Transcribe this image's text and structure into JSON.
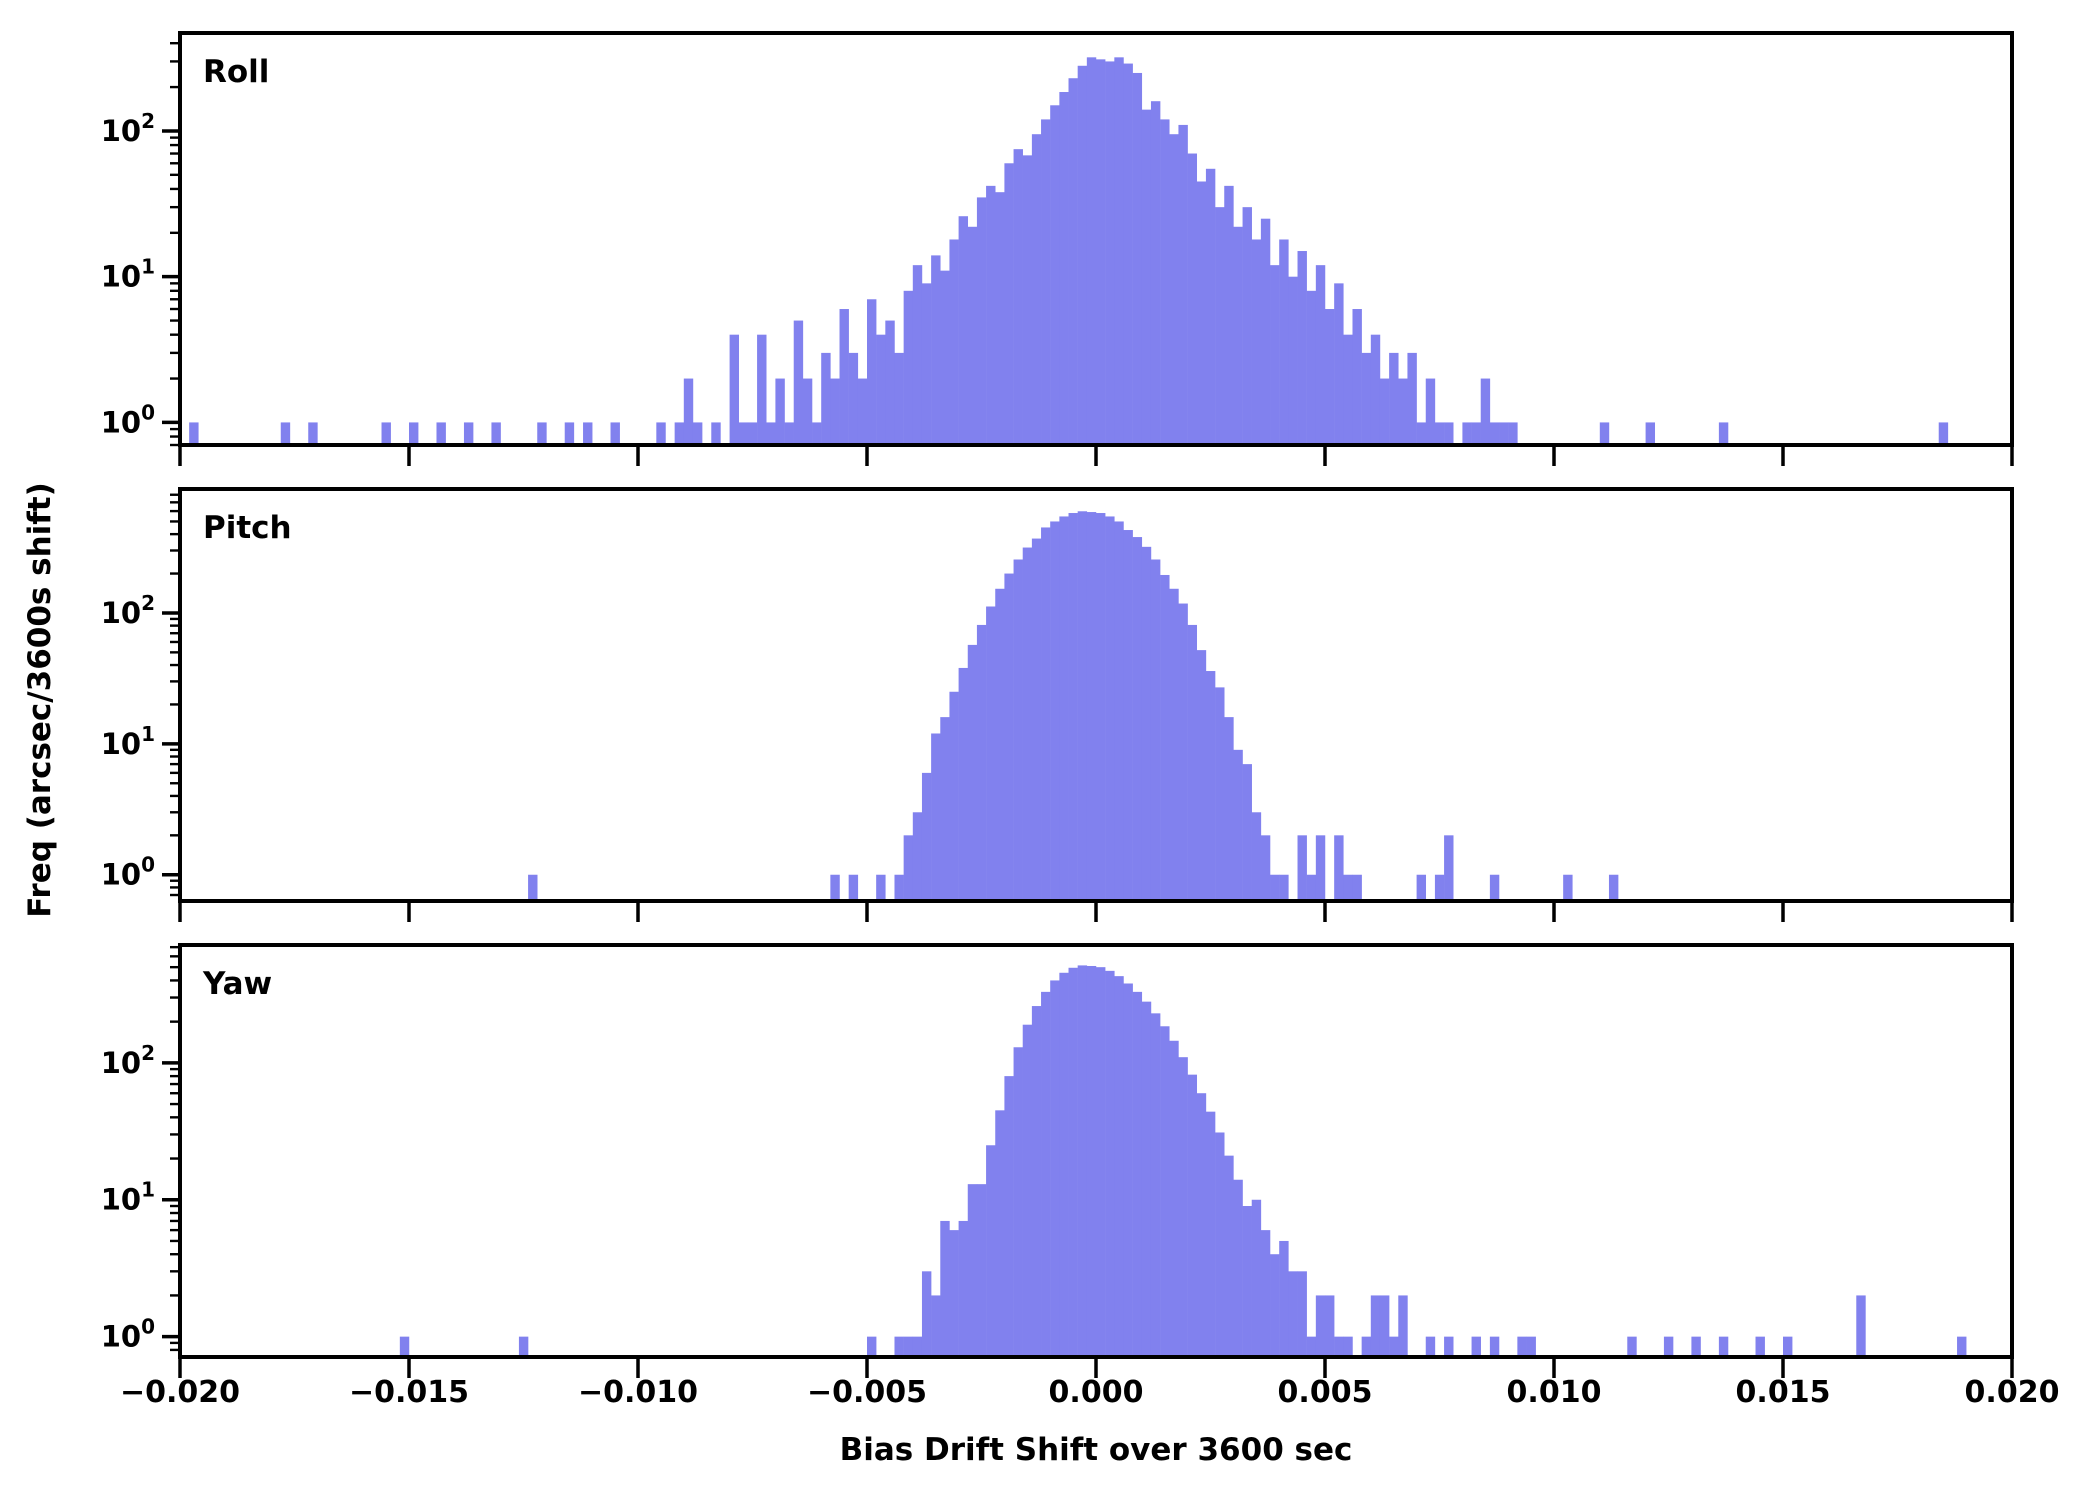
{
  "figure": {
    "xlabel": "Bias Drift Shift over 3600 sec",
    "ylabel": "Freq (arcsec/3600s shift)",
    "background": "#ffffff",
    "bar_color": "#8181ee",
    "axis_color": "#000000",
    "x_ticks": [
      -0.02,
      -0.015,
      -0.01,
      -0.005,
      0.0,
      0.005,
      0.01,
      0.015,
      0.02
    ],
    "x_tick_labels": [
      "−0.020",
      "−0.015",
      "−0.010",
      "−0.005",
      "0.000",
      "0.005",
      "0.010",
      "0.015",
      "0.020"
    ],
    "y_major_ticks": [
      1,
      10,
      100
    ],
    "y_tick_exponents": [
      0,
      1,
      2
    ]
  },
  "chart_data": [
    {
      "type": "bar",
      "title": "Roll",
      "xlabel": "Bias Drift Shift over 3600 sec",
      "ylabel": "Freq (arcsec/3600s shift)",
      "yscale": "log",
      "xlim": [
        -0.02,
        0.02
      ],
      "ylim": [
        0.7,
        470
      ],
      "grid": false,
      "legend": false,
      "bin_start": -0.02,
      "bin_width": 0.0002,
      "counts": [
        0,
        1,
        0,
        0,
        0,
        0,
        0,
        0,
        0,
        0,
        0,
        1,
        0,
        0,
        1,
        0,
        0,
        0,
        0,
        0,
        0,
        0,
        1,
        0,
        0,
        1,
        0,
        0,
        1,
        0,
        0,
        1,
        0,
        0,
        1,
        0,
        0,
        0,
        0,
        1,
        0,
        0,
        1,
        0,
        1,
        0,
        0,
        1,
        0,
        0,
        0,
        0,
        1,
        0,
        1,
        2,
        1,
        0,
        1,
        0,
        4,
        1,
        1,
        4,
        1,
        2,
        1,
        5,
        2,
        1,
        3,
        2,
        6,
        3,
        2,
        7,
        4,
        5,
        3,
        8,
        12,
        9,
        14,
        11,
        18,
        26,
        22,
        35,
        42,
        38,
        60,
        75,
        68,
        95,
        120,
        150,
        185,
        230,
        280,
        320,
        310,
        300,
        320,
        290,
        250,
        140,
        160,
        120,
        95,
        110,
        70,
        45,
        55,
        30,
        42,
        22,
        30,
        18,
        25,
        12,
        18,
        10,
        15,
        8,
        12,
        6,
        9,
        4,
        6,
        3,
        4,
        2,
        3,
        2,
        3,
        1,
        2,
        1,
        1,
        0,
        1,
        1,
        2,
        1,
        1,
        1,
        0,
        0,
        0,
        0,
        0,
        0,
        0,
        0,
        0,
        1,
        0,
        0,
        0,
        0,
        1,
        0,
        0,
        0,
        0,
        0,
        0,
        0,
        1,
        0,
        0,
        0,
        0,
        0,
        0,
        0,
        0,
        0,
        0,
        0,
        0,
        0,
        0,
        0,
        0,
        0,
        0,
        0,
        0,
        0,
        0,
        0,
        1,
        0,
        0,
        0,
        0,
        0,
        0,
        0
      ]
    },
    {
      "type": "bar",
      "title": "Pitch",
      "xlabel": "Bias Drift Shift over 3600 sec",
      "ylabel": "Freq (arcsec/3600s shift)",
      "yscale": "log",
      "xlim": [
        -0.02,
        0.02
      ],
      "ylim": [
        0.63,
        885
      ],
      "grid": false,
      "legend": false,
      "bin_start": -0.02,
      "bin_width": 0.0002,
      "counts": [
        0,
        0,
        0,
        0,
        0,
        0,
        0,
        0,
        0,
        0,
        0,
        0,
        0,
        0,
        0,
        0,
        0,
        0,
        0,
        0,
        0,
        0,
        0,
        0,
        0,
        0,
        0,
        0,
        0,
        0,
        0,
        0,
        0,
        0,
        0,
        0,
        0,
        0,
        1,
        0,
        0,
        0,
        0,
        0,
        0,
        0,
        0,
        0,
        0,
        0,
        0,
        0,
        0,
        0,
        0,
        0,
        0,
        0,
        0,
        0,
        0,
        0,
        0,
        0,
        0,
        0,
        0,
        0,
        0,
        0,
        0,
        1,
        0,
        1,
        0,
        0,
        1,
        0,
        1,
        2,
        3,
        6,
        12,
        16,
        25,
        38,
        57,
        81,
        112,
        153,
        200,
        256,
        316,
        370,
        450,
        500,
        546,
        580,
        598,
        590,
        580,
        546,
        500,
        430,
        380,
        320,
        256,
        195,
        153,
        118,
        81,
        52,
        36,
        27,
        16,
        9,
        7,
        3,
        2,
        1,
        1,
        0,
        2,
        1,
        2,
        0,
        2,
        1,
        1,
        0,
        0,
        0,
        0,
        0,
        0,
        1,
        0,
        1,
        2,
        0,
        0,
        0,
        0,
        1,
        0,
        0,
        0,
        0,
        0,
        0,
        0,
        1,
        0,
        0,
        0,
        0,
        1,
        0,
        0,
        0,
        0,
        0,
        0,
        0,
        0,
        0,
        0,
        0,
        0,
        0,
        0,
        0,
        0,
        0,
        0,
        0,
        0,
        0,
        0,
        0,
        0,
        0,
        0,
        0,
        0,
        0,
        0,
        0,
        0,
        0,
        0,
        0,
        0,
        0,
        0,
        0,
        0,
        0,
        0,
        0
      ]
    },
    {
      "type": "bar",
      "title": "Yaw",
      "xlabel": "Bias Drift Shift over 3600 sec",
      "ylabel": "Freq (arcsec/3600s shift)",
      "yscale": "log",
      "xlim": [
        -0.02,
        0.02
      ],
      "ylim": [
        0.71,
        726
      ],
      "grid": false,
      "legend": false,
      "bin_start": -0.02,
      "bin_width": 0.0002,
      "counts": [
        0,
        0,
        0,
        0,
        0,
        0,
        0,
        0,
        0,
        0,
        0,
        0,
        0,
        0,
        0,
        0,
        0,
        0,
        0,
        0,
        0,
        0,
        0,
        0,
        1,
        0,
        0,
        0,
        0,
        0,
        0,
        0,
        0,
        0,
        0,
        0,
        0,
        1,
        0,
        0,
        0,
        0,
        0,
        0,
        0,
        0,
        0,
        0,
        0,
        0,
        0,
        0,
        0,
        0,
        0,
        0,
        0,
        0,
        0,
        0,
        0,
        0,
        0,
        0,
        0,
        0,
        0,
        0,
        0,
        0,
        0,
        0,
        0,
        0,
        0,
        1,
        0,
        0,
        1,
        1,
        1,
        3,
        2,
        7,
        6,
        7,
        13,
        13,
        25,
        45,
        80,
        130,
        190,
        260,
        330,
        400,
        455,
        495,
        515,
        510,
        500,
        470,
        430,
        380,
        330,
        280,
        230,
        185,
        145,
        110,
        82,
        60,
        44,
        31,
        21,
        14,
        9,
        10,
        6,
        4,
        5,
        3,
        3,
        1,
        2,
        2,
        1,
        1,
        0,
        1,
        2,
        2,
        1,
        2,
        0,
        0,
        1,
        0,
        1,
        0,
        0,
        1,
        0,
        1,
        0,
        0,
        1,
        1,
        0,
        0,
        0,
        0,
        0,
        0,
        0,
        0,
        0,
        0,
        1,
        0,
        0,
        0,
        1,
        0,
        0,
        1,
        0,
        0,
        1,
        0,
        0,
        0,
        1,
        0,
        0,
        1,
        0,
        0,
        0,
        0,
        0,
        0,
        0,
        2,
        0,
        0,
        0,
        0,
        0,
        0,
        0,
        0,
        0,
        0,
        1,
        0,
        0,
        0,
        0,
        0
      ]
    }
  ]
}
